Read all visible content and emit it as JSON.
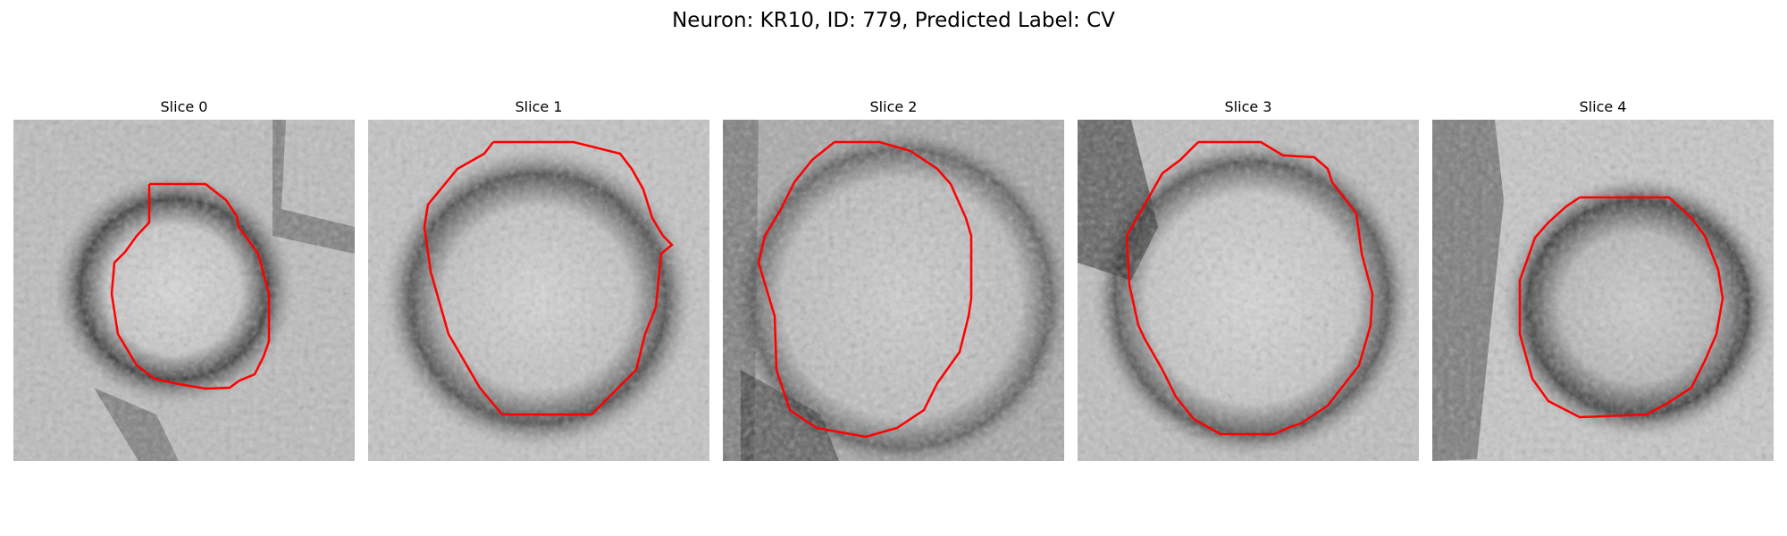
{
  "figure": {
    "title": "Neuron: KR10, ID: 779, Predicted Label: CV"
  },
  "contour_color": "#ff0000",
  "panels": [
    {
      "title": "Slice 0"
    },
    {
      "title": "Slice 1"
    },
    {
      "title": "Slice 2"
    },
    {
      "title": "Slice 3"
    },
    {
      "title": "Slice 4"
    }
  ]
}
